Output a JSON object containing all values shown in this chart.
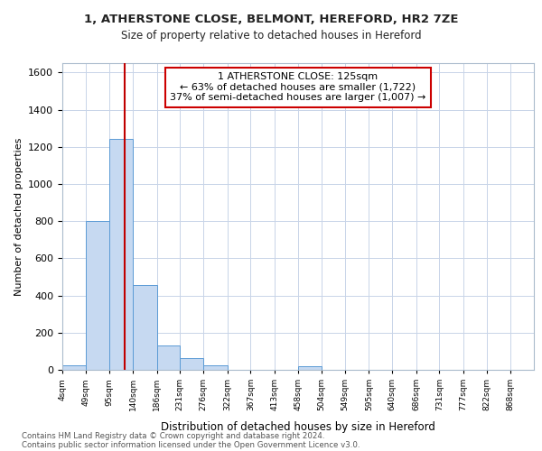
{
  "title": "1, ATHERSTONE CLOSE, BELMONT, HEREFORD, HR2 7ZE",
  "subtitle": "Size of property relative to detached houses in Hereford",
  "xlabel": "Distribution of detached houses by size in Hereford",
  "ylabel": "Number of detached properties",
  "footnote1": "Contains HM Land Registry data © Crown copyright and database right 2024.",
  "footnote2": "Contains public sector information licensed under the Open Government Licence v3.0.",
  "annotation_line1": "1 ATHERSTONE CLOSE: 125sqm",
  "annotation_line2": "← 63% of detached houses are smaller (1,722)",
  "annotation_line3": "37% of semi-detached houses are larger (1,007) →",
  "bar_edges": [
    4,
    49,
    95,
    140,
    186,
    231,
    276,
    322,
    367,
    413,
    458,
    504,
    549,
    595,
    640,
    686,
    731,
    777,
    822,
    868,
    913
  ],
  "bar_heights": [
    25,
    800,
    1240,
    455,
    130,
    65,
    25,
    0,
    0,
    0,
    18,
    0,
    0,
    0,
    0,
    0,
    0,
    0,
    0,
    0
  ],
  "bar_color": "#c6d9f1",
  "bar_edge_color": "#5b9bd5",
  "property_line_x": 125,
  "property_line_color": "#c00000",
  "ylim": [
    0,
    1650
  ],
  "yticks": [
    0,
    200,
    400,
    600,
    800,
    1000,
    1200,
    1400,
    1600
  ],
  "background_color": "#ffffff",
  "grid_color": "#c8d4e8"
}
